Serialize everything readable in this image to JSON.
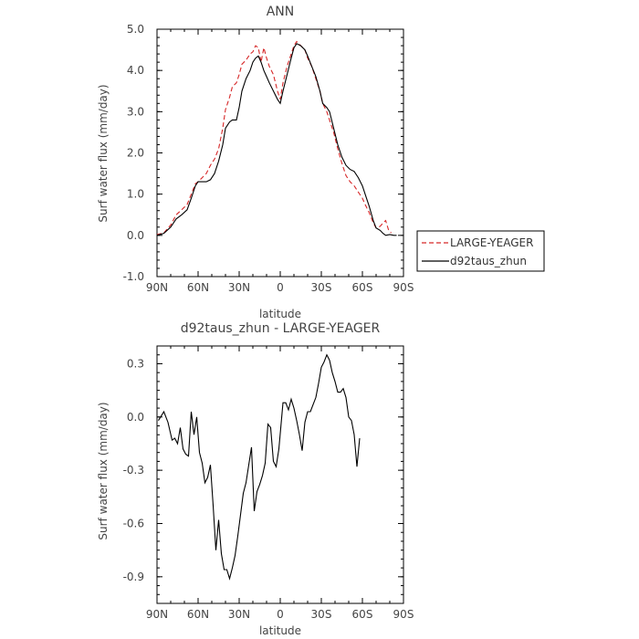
{
  "chart_data": [
    {
      "type": "line",
      "title": "ANN",
      "xlabel": "latitude",
      "ylabel": "Surf water flux (mm/day)",
      "xlim": [
        -90,
        90
      ],
      "ylim": [
        -1.0,
        5.0
      ],
      "x_tick_values": [
        -90,
        -60,
        -30,
        0,
        30,
        60,
        90
      ],
      "x_tick_labels": [
        "90N",
        "60N",
        "30N",
        "0",
        "30S",
        "60S",
        "90S"
      ],
      "y_tick_values": [
        -1,
        0,
        1,
        2,
        3,
        4,
        5
      ],
      "y_tick_labels": [
        "-1.0",
        "0.0",
        "1.0",
        "2.0",
        "3.0",
        "4.0",
        "5.0"
      ],
      "legend_position": "right-outside",
      "series": [
        {
          "name": "LARGE-YEAGER",
          "color": "#d62728",
          "dash": "dashed",
          "points": [
            [
              -90,
              0.02
            ],
            [
              -85,
              0.06
            ],
            [
              -80,
              0.25
            ],
            [
              -76,
              0.5
            ],
            [
              -72,
              0.62
            ],
            [
              -68,
              0.75
            ],
            [
              -65,
              1.0
            ],
            [
              -62,
              1.25
            ],
            [
              -60,
              1.3
            ],
            [
              -57,
              1.4
            ],
            [
              -54,
              1.5
            ],
            [
              -51,
              1.7
            ],
            [
              -48,
              1.85
            ],
            [
              -45,
              2.1
            ],
            [
              -42,
              2.6
            ],
            [
              -40,
              3.05
            ],
            [
              -37,
              3.35
            ],
            [
              -35,
              3.6
            ],
            [
              -32,
              3.7
            ],
            [
              -30,
              3.9
            ],
            [
              -28,
              4.15
            ],
            [
              -25,
              4.25
            ],
            [
              -22,
              4.4
            ],
            [
              -20,
              4.45
            ],
            [
              -18,
              4.6
            ],
            [
              -16,
              4.55
            ],
            [
              -14,
              4.2
            ],
            [
              -12,
              4.55
            ],
            [
              -10,
              4.3
            ],
            [
              -8,
              4.1
            ],
            [
              -5,
              3.9
            ],
            [
              -2,
              3.5
            ],
            [
              0,
              3.3
            ],
            [
              2,
              3.7
            ],
            [
              5,
              4.1
            ],
            [
              8,
              4.4
            ],
            [
              10,
              4.6
            ],
            [
              12,
              4.7
            ],
            [
              15,
              4.6
            ],
            [
              18,
              4.5
            ],
            [
              20,
              4.3
            ],
            [
              23,
              4.1
            ],
            [
              26,
              3.8
            ],
            [
              29,
              3.5
            ],
            [
              31,
              3.2
            ],
            [
              34,
              3.0
            ],
            [
              36,
              2.8
            ],
            [
              39,
              2.5
            ],
            [
              42,
              2.1
            ],
            [
              45,
              1.75
            ],
            [
              48,
              1.45
            ],
            [
              51,
              1.3
            ],
            [
              54,
              1.2
            ],
            [
              57,
              1.05
            ],
            [
              60,
              0.9
            ],
            [
              62,
              0.75
            ],
            [
              65,
              0.55
            ],
            [
              68,
              0.3
            ],
            [
              70,
              0.18
            ],
            [
              73,
              0.22
            ],
            [
              75,
              0.3
            ],
            [
              77,
              0.36
            ],
            [
              79,
              0.14
            ],
            [
              81,
              0.06
            ]
          ]
        },
        {
          "name": "d92taus_zhun",
          "color": "#000000",
          "dash": "solid",
          "points": [
            [
              -90,
              0.0
            ],
            [
              -85,
              0.05
            ],
            [
              -80,
              0.2
            ],
            [
              -76,
              0.4
            ],
            [
              -72,
              0.5
            ],
            [
              -68,
              0.62
            ],
            [
              -65,
              0.9
            ],
            [
              -62,
              1.2
            ],
            [
              -60,
              1.3
            ],
            [
              -57,
              1.3
            ],
            [
              -54,
              1.3
            ],
            [
              -51,
              1.35
            ],
            [
              -48,
              1.5
            ],
            [
              -45,
              1.8
            ],
            [
              -42,
              2.2
            ],
            [
              -40,
              2.6
            ],
            [
              -37,
              2.75
            ],
            [
              -35,
              2.8
            ],
            [
              -32,
              2.8
            ],
            [
              -30,
              3.1
            ],
            [
              -28,
              3.5
            ],
            [
              -25,
              3.8
            ],
            [
              -22,
              4.0
            ],
            [
              -20,
              4.2
            ],
            [
              -18,
              4.3
            ],
            [
              -16,
              4.35
            ],
            [
              -14,
              4.2
            ],
            [
              -12,
              4.0
            ],
            [
              -10,
              3.85
            ],
            [
              -8,
              3.7
            ],
            [
              -5,
              3.5
            ],
            [
              -2,
              3.3
            ],
            [
              0,
              3.2
            ],
            [
              2,
              3.5
            ],
            [
              5,
              3.9
            ],
            [
              8,
              4.3
            ],
            [
              10,
              4.55
            ],
            [
              12,
              4.65
            ],
            [
              15,
              4.6
            ],
            [
              18,
              4.5
            ],
            [
              20,
              4.35
            ],
            [
              23,
              4.1
            ],
            [
              26,
              3.85
            ],
            [
              29,
              3.5
            ],
            [
              31,
              3.2
            ],
            [
              34,
              3.1
            ],
            [
              36,
              3.0
            ],
            [
              39,
              2.6
            ],
            [
              42,
              2.2
            ],
            [
              45,
              1.9
            ],
            [
              48,
              1.7
            ],
            [
              51,
              1.6
            ],
            [
              54,
              1.55
            ],
            [
              57,
              1.4
            ],
            [
              60,
              1.2
            ],
            [
              62,
              1.0
            ],
            [
              65,
              0.7
            ],
            [
              68,
              0.35
            ],
            [
              70,
              0.18
            ],
            [
              73,
              0.12
            ],
            [
              75,
              0.05
            ],
            [
              77,
              0.0
            ],
            [
              80,
              0.02
            ],
            [
              83,
              0.0
            ],
            [
              85,
              0.0
            ]
          ]
        }
      ]
    },
    {
      "type": "line",
      "title": "d92taus_zhun - LARGE-YEAGER",
      "xlabel": "latitude",
      "ylabel": "Surf water flux (mm/day)",
      "xlim": [
        -90,
        90
      ],
      "ylim": [
        -1.05,
        0.4
      ],
      "x_tick_values": [
        -90,
        -60,
        -30,
        0,
        30,
        60,
        90
      ],
      "x_tick_labels": [
        "90N",
        "60N",
        "30N",
        "0",
        "30S",
        "60S",
        "90S"
      ],
      "y_tick_values": [
        -0.9,
        -0.6,
        -0.3,
        0.0,
        0.3
      ],
      "y_tick_labels": [
        "-0.9",
        "-0.6",
        "-0.3",
        "0.0",
        "0.3"
      ],
      "series": [
        {
          "name": "",
          "color": "#000000",
          "dash": "solid",
          "points": [
            [
              -89,
              -0.02
            ],
            [
              -85,
              0.03
            ],
            [
              -82,
              -0.03
            ],
            [
              -79,
              -0.13
            ],
            [
              -77,
              -0.12
            ],
            [
              -75,
              -0.15
            ],
            [
              -73,
              -0.06
            ],
            [
              -71,
              -0.18
            ],
            [
              -69,
              -0.21
            ],
            [
              -67,
              -0.22
            ],
            [
              -65,
              0.03
            ],
            [
              -63,
              -0.1
            ],
            [
              -61,
              0.0
            ],
            [
              -59,
              -0.2
            ],
            [
              -57,
              -0.26
            ],
            [
              -55,
              -0.37
            ],
            [
              -53,
              -0.34
            ],
            [
              -51,
              -0.27
            ],
            [
              -49,
              -0.5
            ],
            [
              -47,
              -0.75
            ],
            [
              -45,
              -0.58
            ],
            [
              -43,
              -0.77
            ],
            [
              -41,
              -0.86
            ],
            [
              -39,
              -0.86
            ],
            [
              -37,
              -0.91
            ],
            [
              -35,
              -0.85
            ],
            [
              -33,
              -0.78
            ],
            [
              -31,
              -0.67
            ],
            [
              -29,
              -0.55
            ],
            [
              -27,
              -0.43
            ],
            [
              -25,
              -0.37
            ],
            [
              -23,
              -0.27
            ],
            [
              -21,
              -0.17
            ],
            [
              -19,
              -0.53
            ],
            [
              -17,
              -0.42
            ],
            [
              -15,
              -0.38
            ],
            [
              -13,
              -0.33
            ],
            [
              -11,
              -0.26
            ],
            [
              -9,
              -0.04
            ],
            [
              -7,
              -0.06
            ],
            [
              -5,
              -0.25
            ],
            [
              -3,
              -0.28
            ],
            [
              -1,
              -0.18
            ],
            [
              2,
              0.08
            ],
            [
              4,
              0.08
            ],
            [
              6,
              0.04
            ],
            [
              8,
              0.1
            ],
            [
              10,
              0.05
            ],
            [
              12,
              -0.02
            ],
            [
              14,
              -0.1
            ],
            [
              16,
              -0.19
            ],
            [
              18,
              -0.03
            ],
            [
              20,
              0.03
            ],
            [
              22,
              0.03
            ],
            [
              24,
              0.07
            ],
            [
              26,
              0.11
            ],
            [
              28,
              0.19
            ],
            [
              30,
              0.28
            ],
            [
              32,
              0.31
            ],
            [
              34,
              0.35
            ],
            [
              36,
              0.32
            ],
            [
              38,
              0.25
            ],
            [
              40,
              0.2
            ],
            [
              42,
              0.14
            ],
            [
              44,
              0.14
            ],
            [
              46,
              0.16
            ],
            [
              48,
              0.11
            ],
            [
              50,
              0.0
            ],
            [
              52,
              -0.02
            ],
            [
              54,
              -0.1
            ],
            [
              56,
              -0.28
            ],
            [
              58,
              -0.12
            ]
          ]
        }
      ]
    }
  ]
}
